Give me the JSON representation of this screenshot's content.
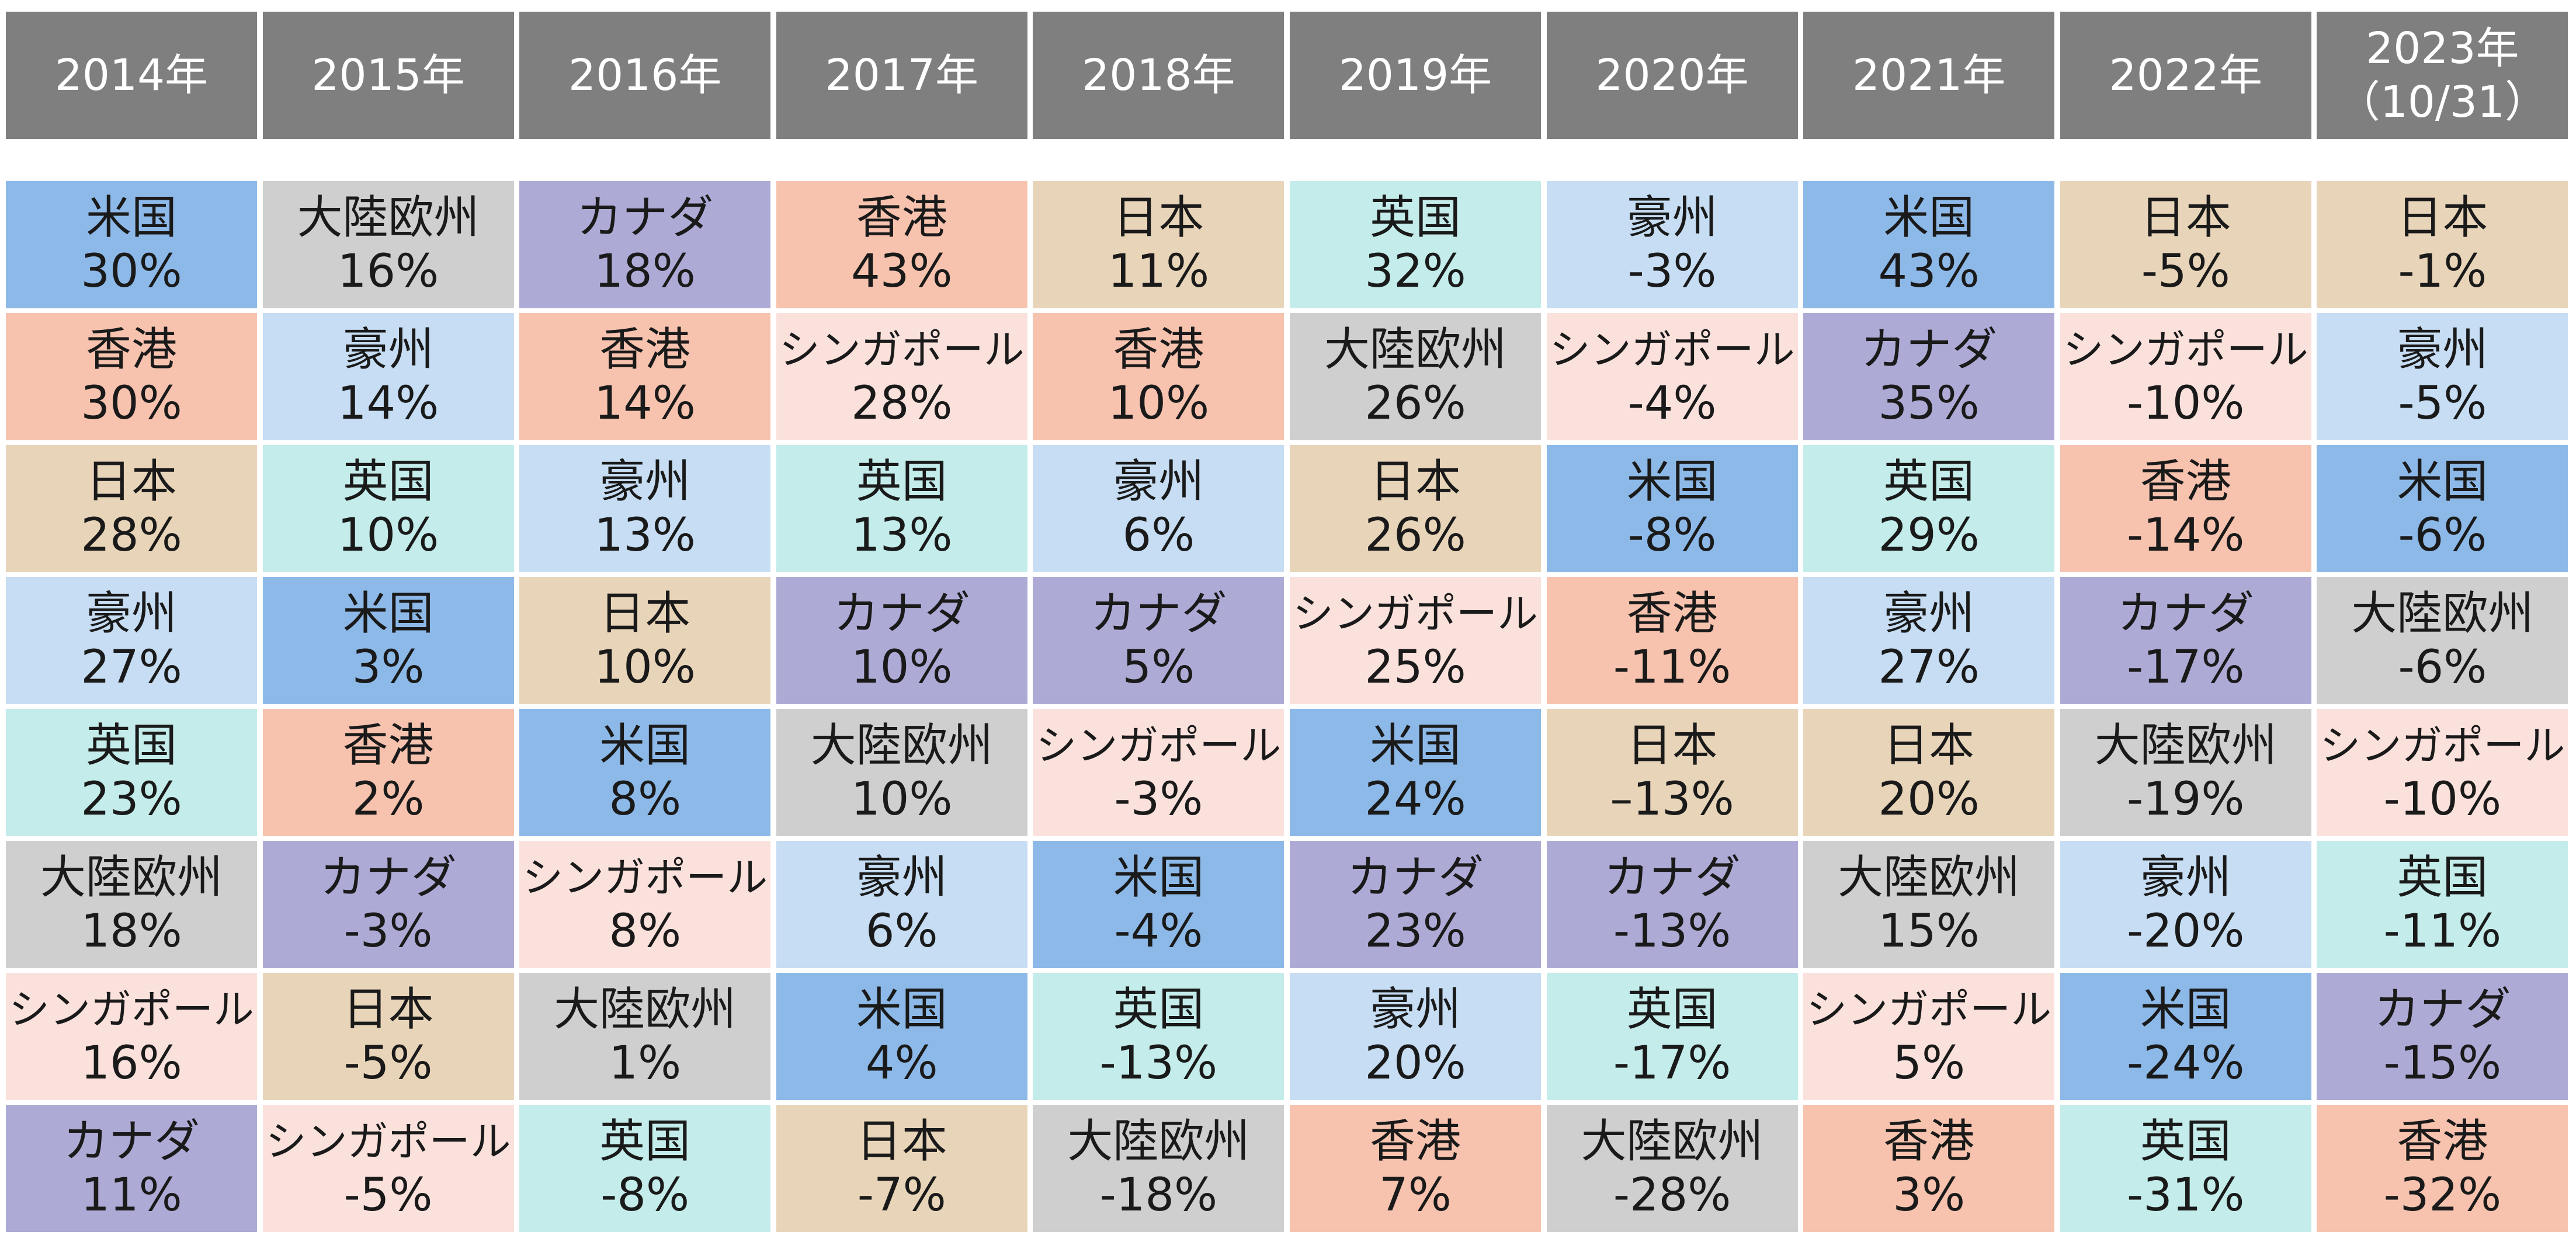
{
  "chart_data": {
    "type": "table",
    "title": "",
    "columns": [
      "2014年",
      "2015年",
      "2016年",
      "2017年",
      "2018年",
      "2019年",
      "2020年",
      "2021年",
      "2022年",
      "2023年\n（10/31）"
    ],
    "colors": {
      "米国": "#8db9e8",
      "香港": "#f7c3af",
      "日本": "#e8d5b9",
      "豪州": "#c6ddf3",
      "英国": "#c3ecea",
      "大陸欧州": "#cfcfcf",
      "シンガポール": "#fbe1dc",
      "カナダ": "#adabd6"
    },
    "header_color": "#7f7f7f",
    "rankings": [
      [
        [
          "米国",
          "30%"
        ],
        [
          "香港",
          "30%"
        ],
        [
          "日本",
          "28%"
        ],
        [
          "豪州",
          "27%"
        ],
        [
          "英国",
          "23%"
        ],
        [
          "大陸欧州",
          "18%"
        ],
        [
          "シンガポール",
          "16%"
        ],
        [
          "カナダ",
          "11%"
        ]
      ],
      [
        [
          "大陸欧州",
          "16%"
        ],
        [
          "豪州",
          "14%"
        ],
        [
          "英国",
          "10%"
        ],
        [
          "米国",
          "3%"
        ],
        [
          "香港",
          "2%"
        ],
        [
          "カナダ",
          "-3%"
        ],
        [
          "日本",
          "-5%"
        ],
        [
          "シンガポール",
          "-5%"
        ]
      ],
      [
        [
          "カナダ",
          "18%"
        ],
        [
          "香港",
          "14%"
        ],
        [
          "豪州",
          "13%"
        ],
        [
          "日本",
          "10%"
        ],
        [
          "米国",
          "8%"
        ],
        [
          "シンガポール",
          "8%"
        ],
        [
          "大陸欧州",
          "1%"
        ],
        [
          "英国",
          "-8%"
        ]
      ],
      [
        [
          "香港",
          "43%"
        ],
        [
          "シンガポール",
          "28%"
        ],
        [
          "英国",
          "13%"
        ],
        [
          "カナダ",
          "10%"
        ],
        [
          "大陸欧州",
          "10%"
        ],
        [
          "豪州",
          "6%"
        ],
        [
          "米国",
          "4%"
        ],
        [
          "日本",
          "-7%"
        ]
      ],
      [
        [
          "日本",
          "11%"
        ],
        [
          "香港",
          "10%"
        ],
        [
          "豪州",
          "6%"
        ],
        [
          "カナダ",
          "5%"
        ],
        [
          "シンガポール",
          "-3%"
        ],
        [
          "米国",
          "-4%"
        ],
        [
          "英国",
          "-13%"
        ],
        [
          "大陸欧州",
          "-18%"
        ]
      ],
      [
        [
          "英国",
          "32%"
        ],
        [
          "大陸欧州",
          "26%"
        ],
        [
          "日本",
          "26%"
        ],
        [
          "シンガポール",
          "25%"
        ],
        [
          "米国",
          "24%"
        ],
        [
          "カナダ",
          "23%"
        ],
        [
          "豪州",
          "20%"
        ],
        [
          "香港",
          "7%"
        ]
      ],
      [
        [
          "豪州",
          "-3%"
        ],
        [
          "シンガポール",
          "-4%"
        ],
        [
          "米国",
          "-8%"
        ],
        [
          "香港",
          "-11%"
        ],
        [
          "日本",
          "–13%"
        ],
        [
          "カナダ",
          "-13%"
        ],
        [
          "英国",
          "-17%"
        ],
        [
          "大陸欧州",
          "-28%"
        ]
      ],
      [
        [
          "米国",
          "43%"
        ],
        [
          "カナダ",
          "35%"
        ],
        [
          "英国",
          "29%"
        ],
        [
          "豪州",
          "27%"
        ],
        [
          "日本",
          "20%"
        ],
        [
          "大陸欧州",
          "15%"
        ],
        [
          "シンガポール",
          "5%"
        ],
        [
          "香港",
          "3%"
        ]
      ],
      [
        [
          "日本",
          "-5%"
        ],
        [
          "シンガポール",
          "-10%"
        ],
        [
          "香港",
          "-14%"
        ],
        [
          "カナダ",
          "-17%"
        ],
        [
          "大陸欧州",
          "-19%"
        ],
        [
          "豪州",
          "-20%"
        ],
        [
          "米国",
          "-24%"
        ],
        [
          "英国",
          "-31%"
        ]
      ],
      [
        [
          "日本",
          "-1%"
        ],
        [
          "豪州",
          "-5%"
        ],
        [
          "米国",
          "-6%"
        ],
        [
          "大陸欧州",
          "-6%"
        ],
        [
          "シンガポール",
          "-10%"
        ],
        [
          "英国",
          "-11%"
        ],
        [
          "カナダ",
          "-15%"
        ],
        [
          "香港",
          "-32%"
        ]
      ]
    ]
  }
}
